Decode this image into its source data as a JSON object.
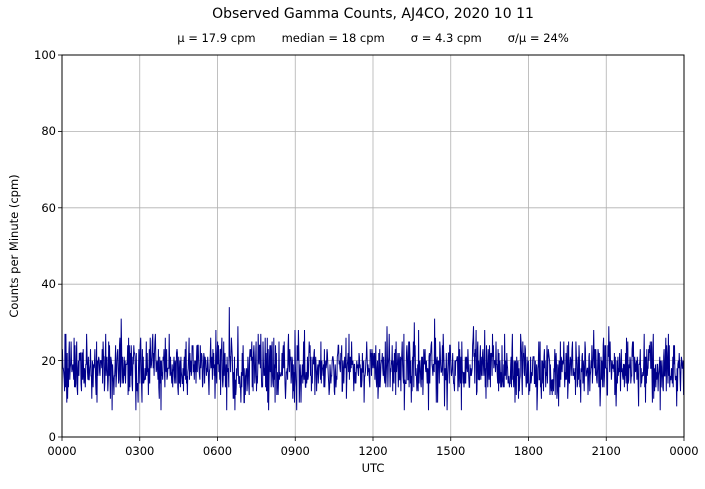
{
  "figure": {
    "title": "Observed Gamma Counts, AJ4CO, 2020 10 11",
    "stats": {
      "mu": "μ = 17.9 cpm",
      "median": "median = 18 cpm",
      "sigma": "σ = 4.3 cpm",
      "ratio": "σ/μ = 24%"
    }
  },
  "chart_data": {
    "type": "line",
    "title": "Observed Gamma Counts, AJ4CO, 2020 10 11",
    "subtitle": "μ = 17.9 cpm     median = 18 cpm     σ = 4.3 cpm     σ/μ = 24%",
    "xlabel": "UTC",
    "ylabel": "Counts per Minute (cpm)",
    "ylim": [
      0,
      100
    ],
    "yticks": [
      0,
      20,
      40,
      60,
      80,
      100
    ],
    "xtick_labels": [
      "0000",
      "0300",
      "0600",
      "0900",
      "1200",
      "1500",
      "1800",
      "2100",
      "0000"
    ],
    "x_span_minutes": [
      0,
      1440
    ],
    "grid": true,
    "legend": "none",
    "line_color": "#00008b",
    "grid_color": "#b0b0b0",
    "series": [
      {
        "name": "Observed gamma counts",
        "points_per_day": 1440,
        "mean_cpm": 17.9,
        "median_cpm": 18,
        "sigma_cpm": 4.3,
        "observed_min_cpm": 7,
        "observed_max_cpm": 34
      }
    ]
  }
}
